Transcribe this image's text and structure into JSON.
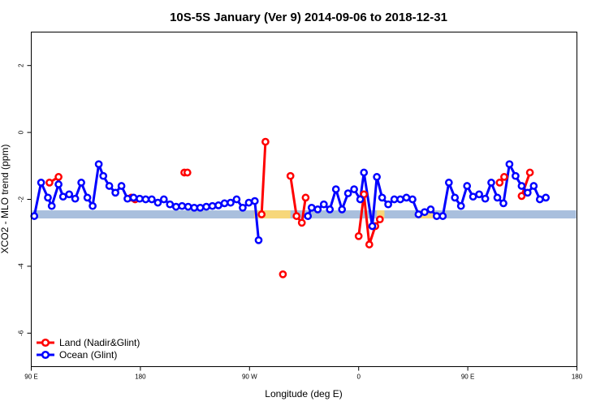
{
  "chart_data": {
    "type": "line",
    "title": "10S-5S January (Ver 9)   2014-09-06 to 2018-12-31",
    "xlabel": "Longitude (deg E)",
    "ylabel": "XCO2 - MLO trend (ppm)",
    "xlim": [
      90,
      450
    ],
    "ylim": [
      -7,
      3
    ],
    "x_ticks": [
      {
        "value": 90,
        "label": "90 E"
      },
      {
        "value": 162,
        "label": "180"
      },
      {
        "value": 234,
        "label": "90 W"
      },
      {
        "value": 306,
        "label": "0"
      },
      {
        "value": 378,
        "label": "90 E"
      },
      {
        "value": 450,
        "label": "180"
      }
    ],
    "y_ticks": [
      {
        "value": -6,
        "label": "-6"
      },
      {
        "value": -4,
        "label": "-4"
      },
      {
        "value": -2,
        "label": "-2"
      },
      {
        "value": 0,
        "label": "0"
      },
      {
        "value": 2,
        "label": "2"
      }
    ],
    "land_band": {
      "y_center": -2.45,
      "land_segments": [
        [
          237,
          261
        ],
        [
          318,
          323
        ],
        [
          344,
          356
        ]
      ]
    },
    "grid": false,
    "legend_position": "bottom-left",
    "colors": {
      "land": "#ff0000",
      "ocean": "#0000ff",
      "band_ocean": "#a9bfdd",
      "band_land": "#f7d77a"
    },
    "series": [
      {
        "name": "Land (Nadir&Glint)",
        "color": "#ff0000",
        "segments": [
          [
            [
              102.0,
              -1.5
            ],
            [
              108.0,
              -1.33
            ]
          ],
          [
            [
              156.0,
              -1.95
            ],
            [
              158.5,
              -2.0
            ]
          ],
          [
            [
              191.0,
              -1.2
            ],
            [
              193.0,
              -1.2
            ]
          ],
          [
            [
              242.0,
              -2.45
            ],
            [
              244.5,
              -0.28
            ]
          ],
          [
            [
              256.0,
              -4.24
            ]
          ],
          [
            [
              261.0,
              -1.3
            ],
            [
              265.0,
              -2.5
            ],
            [
              268.5,
              -2.7
            ],
            [
              271.0,
              -1.95
            ]
          ],
          [
            [
              306.0,
              -3.1
            ],
            [
              309.5,
              -1.85
            ],
            [
              313.0,
              -3.35
            ],
            [
              317.0,
              -2.8
            ],
            [
              320.0,
              -2.6
            ]
          ],
          [
            [
              399.0,
              -1.5
            ],
            [
              402.0,
              -1.33
            ]
          ],
          [
            [
              413.5,
              -1.9
            ],
            [
              419.0,
              -1.2
            ]
          ]
        ]
      },
      {
        "name": "Ocean (Glint)",
        "color": "#0000ff",
        "segments": [
          [
            [
              92.0,
              -2.5
            ],
            [
              96.5,
              -1.5
            ],
            [
              101.0,
              -1.95
            ],
            [
              103.5,
              -2.2
            ],
            [
              108.0,
              -1.55
            ],
            [
              111.0,
              -1.92
            ],
            [
              115.0,
              -1.85
            ],
            [
              119.0,
              -1.98
            ],
            [
              123.0,
              -1.5
            ],
            [
              127.0,
              -1.95
            ],
            [
              130.5,
              -2.2
            ],
            [
              134.5,
              -0.95
            ],
            [
              137.5,
              -1.3
            ],
            [
              141.5,
              -1.6
            ],
            [
              145.5,
              -1.8
            ],
            [
              149.5,
              -1.6
            ],
            [
              153.5,
              -1.98
            ],
            [
              157.5,
              -1.95
            ],
            [
              161.5,
              -1.98
            ],
            [
              165.5,
              -2.0
            ],
            [
              169.5,
              -2.0
            ],
            [
              173.5,
              -2.1
            ],
            [
              177.5,
              -2.0
            ],
            [
              181.5,
              -2.15
            ],
            [
              185.5,
              -2.22
            ],
            [
              189.5,
              -2.2
            ],
            [
              193.5,
              -2.22
            ],
            [
              197.5,
              -2.25
            ],
            [
              201.5,
              -2.25
            ],
            [
              205.5,
              -2.22
            ],
            [
              209.5,
              -2.2
            ],
            [
              213.5,
              -2.18
            ],
            [
              217.5,
              -2.12
            ],
            [
              221.5,
              -2.1
            ],
            [
              225.5,
              -2.0
            ],
            [
              229.5,
              -2.25
            ],
            [
              233.5,
              -2.1
            ],
            [
              237.5,
              -2.05
            ],
            [
              240.0,
              -3.22
            ]
          ],
          [
            [
              272.5,
              -2.5
            ],
            [
              275.0,
              -2.25
            ],
            [
              279.0,
              -2.3
            ],
            [
              283.0,
              -2.15
            ],
            [
              287.0,
              -2.3
            ],
            [
              291.0,
              -1.7
            ],
            [
              295.0,
              -2.3
            ],
            [
              299.0,
              -1.82
            ],
            [
              303.0,
              -1.7
            ],
            [
              307.0,
              -2.0
            ],
            [
              309.5,
              -1.2
            ],
            [
              315.0,
              -2.8
            ],
            [
              318.0,
              -1.33
            ],
            [
              321.5,
              -1.95
            ],
            [
              325.5,
              -2.15
            ],
            [
              329.5,
              -2.0
            ],
            [
              333.5,
              -2.0
            ],
            [
              337.5,
              -1.95
            ],
            [
              341.5,
              -2.0
            ],
            [
              345.5,
              -2.45
            ],
            [
              349.5,
              -2.38
            ],
            [
              353.5,
              -2.3
            ],
            [
              357.5,
              -2.5
            ],
            [
              361.5,
              -2.5
            ],
            [
              365.5,
              -1.5
            ],
            [
              369.5,
              -1.95
            ],
            [
              373.5,
              -2.2
            ],
            [
              377.5,
              -1.6
            ],
            [
              381.5,
              -1.92
            ],
            [
              385.5,
              -1.85
            ],
            [
              389.5,
              -1.98
            ],
            [
              393.5,
              -1.5
            ],
            [
              397.5,
              -1.95
            ],
            [
              401.5,
              -2.12
            ],
            [
              405.5,
              -0.95
            ],
            [
              409.5,
              -1.3
            ],
            [
              413.5,
              -1.6
            ],
            [
              417.5,
              -1.8
            ],
            [
              421.5,
              -1.6
            ],
            [
              425.5,
              -2.0
            ],
            [
              429.5,
              -1.95
            ]
          ]
        ]
      }
    ]
  }
}
